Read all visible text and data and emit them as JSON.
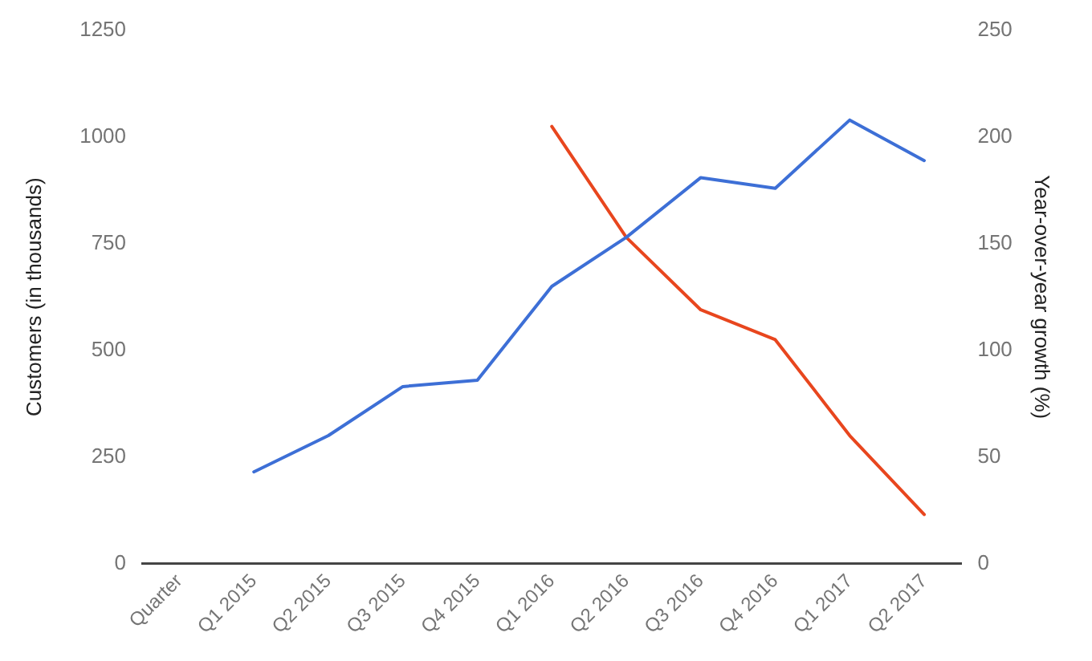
{
  "chart_data": {
    "type": "line",
    "ylabel": "Customers (in thousands)",
    "y2label": "Year-over-year growth (%)",
    "categories": [
      "Quarter",
      "Q1 2015",
      "Q2 2015",
      "Q3 2015",
      "Q4 2015",
      "Q1 2016",
      "Q2 2016",
      "Q3 2016",
      "Q4 2016",
      "Q1 2017",
      "Q2 2017"
    ],
    "series": [
      {
        "color": "#3d6fd6",
        "values": [
          null,
          215,
          300,
          415,
          430,
          650,
          765,
          905,
          880,
          1040,
          945
        ]
      },
      {
        "color": "#e8461e",
        "axis": "y2",
        "values": [
          null,
          null,
          null,
          null,
          null,
          205,
          153,
          119,
          105,
          60,
          23
        ]
      }
    ],
    "ylim": [
      0,
      1250
    ],
    "yticks": [
      0,
      250,
      500,
      750,
      1000,
      1250
    ],
    "y2lim": [
      0,
      250
    ],
    "y2ticks": [
      0,
      50,
      100,
      150,
      200,
      250
    ],
    "grid": false,
    "legend": false,
    "marker": "none",
    "line_style": "solid"
  }
}
